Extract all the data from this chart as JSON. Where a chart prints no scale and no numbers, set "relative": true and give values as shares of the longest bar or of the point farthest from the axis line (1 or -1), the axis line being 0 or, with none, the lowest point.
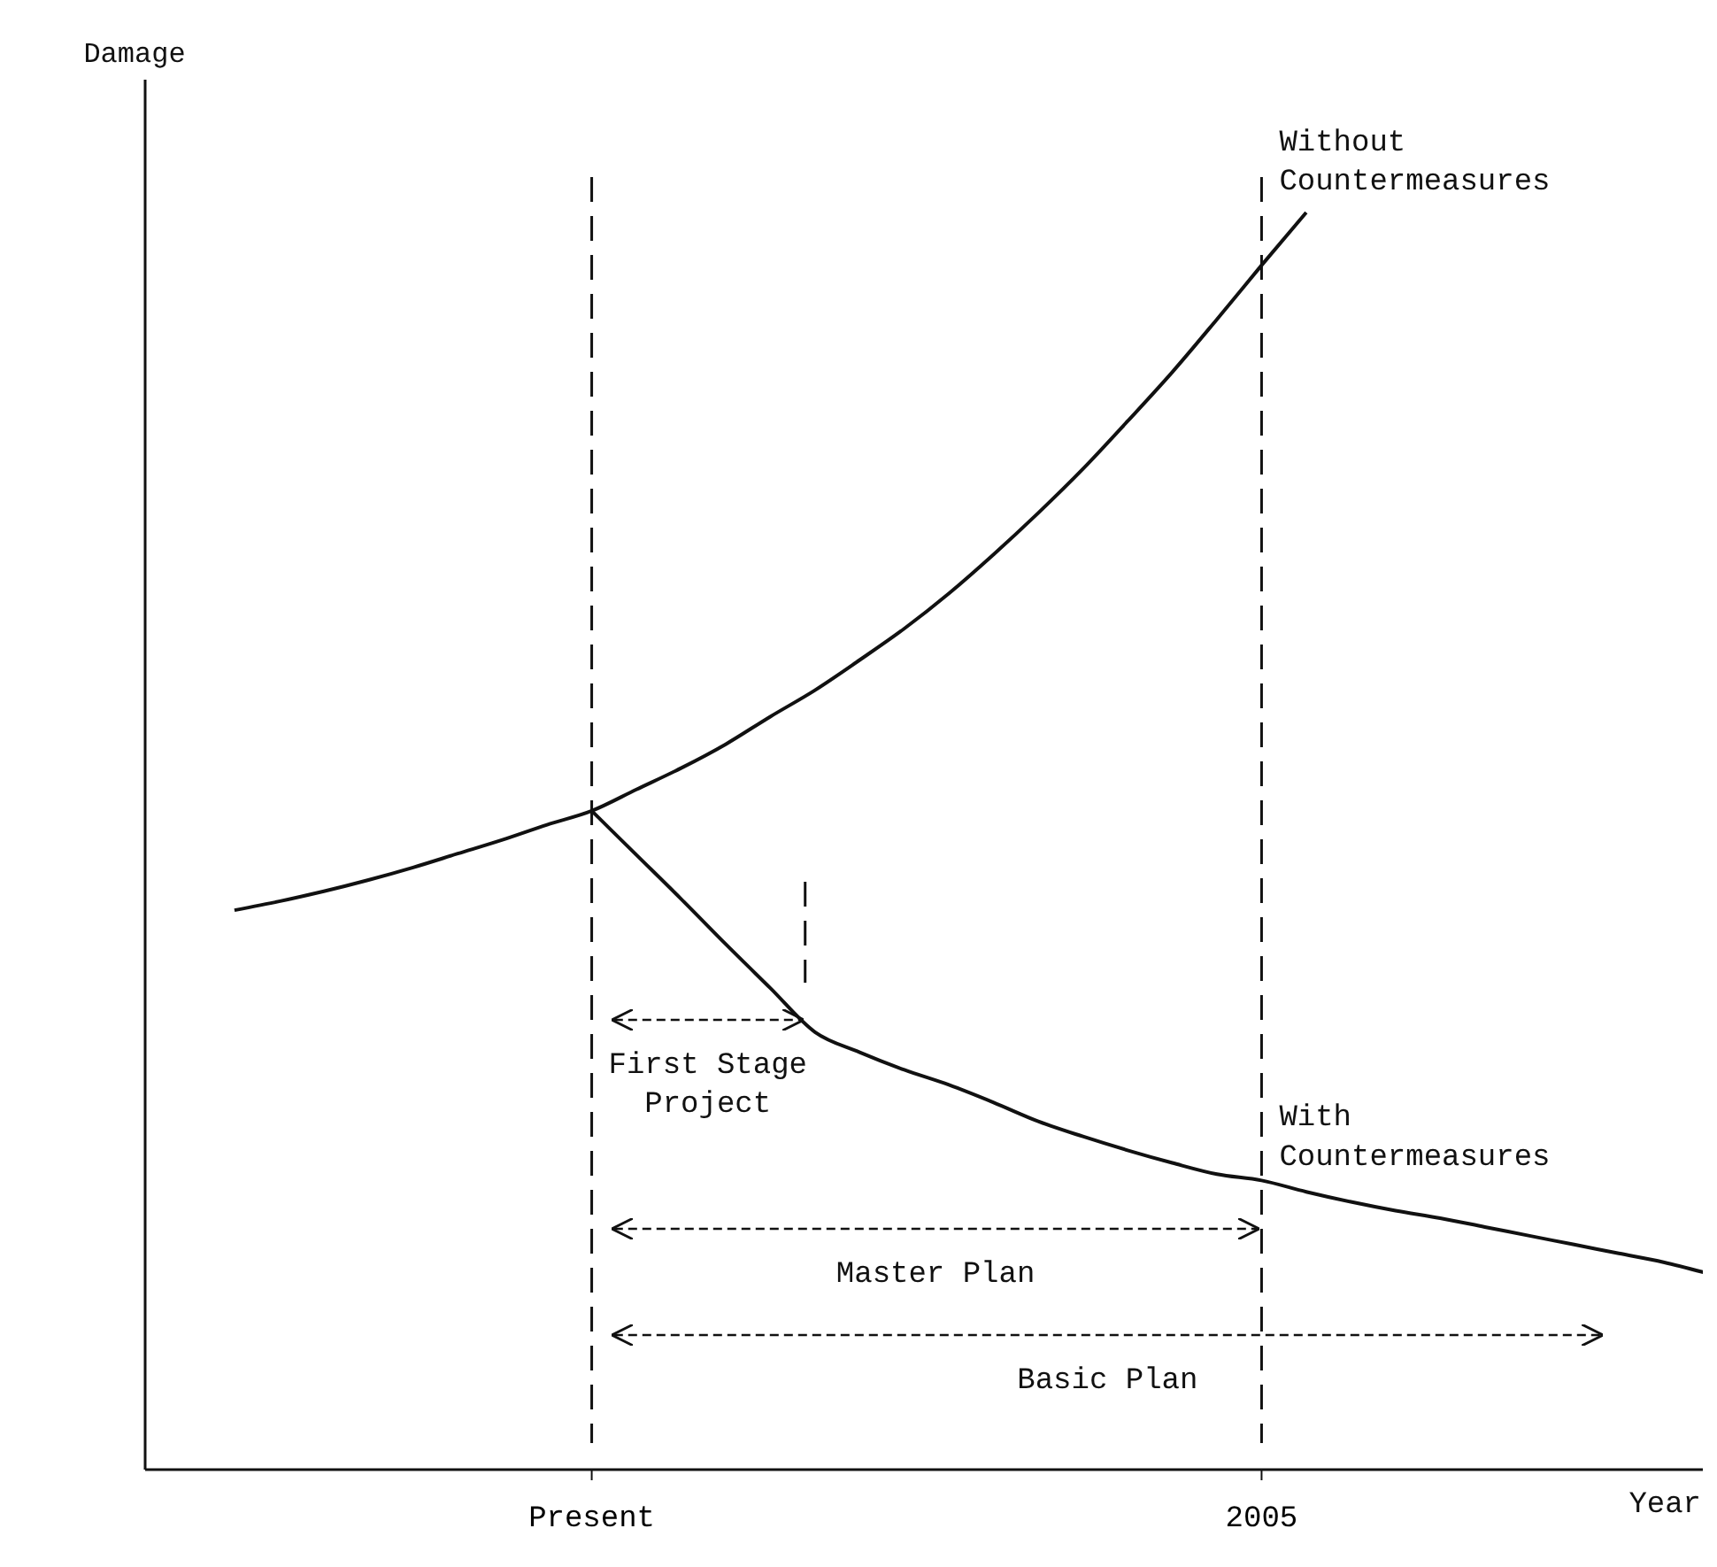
{
  "chart_data": {
    "type": "line",
    "relative": true,
    "xlabel": "Year",
    "ylabel": "Damage",
    "marker": "none",
    "line_style": "solid",
    "categories": [
      null,
      null,
      null,
      null,
      null,
      null,
      null,
      null,
      null,
      null,
      "Present",
      null,
      null,
      null,
      null,
      null,
      null,
      null,
      null,
      null,
      null,
      null,
      null,
      null,
      null,
      "2005",
      null,
      null,
      null,
      null,
      null,
      null,
      null,
      null,
      null,
      null
    ],
    "series": [
      {
        "name": "Without Countermeasures",
        "color": "#111111",
        "values": [
          null,
          null,
          0.445,
          0.452,
          0.46,
          0.469,
          0.479,
          0.49,
          0.501,
          0.513,
          0.524,
          0.541,
          0.558,
          0.577,
          0.599,
          0.62,
          0.644,
          0.669,
          0.697,
          0.728,
          0.761,
          0.796,
          0.834,
          0.873,
          0.915,
          0.958,
          1.0,
          null,
          null,
          null,
          null,
          null,
          null,
          null,
          null,
          null
        ]
      },
      {
        "name": "With Countermeasures",
        "color": "#111111",
        "values": [
          null,
          null,
          null,
          null,
          null,
          null,
          null,
          null,
          null,
          null,
          0.524,
          0.489,
          0.454,
          0.418,
          0.383,
          0.348,
          0.332,
          0.318,
          0.306,
          0.292,
          0.277,
          0.265,
          0.254,
          0.244,
          0.235,
          0.23,
          0.221,
          0.213,
          0.206,
          0.2,
          0.193,
          0.186,
          0.179,
          0.172,
          0.165,
          0.156
        ]
      }
    ],
    "ref_lines": [
      {
        "axis": "x",
        "value": "Present",
        "line_style": "dashed"
      },
      {
        "axis": "x",
        "value": "2005",
        "line_style": "dashed"
      }
    ],
    "annotations": [
      "First Stage Project",
      "Master Plan",
      "Basic Plan"
    ]
  }
}
